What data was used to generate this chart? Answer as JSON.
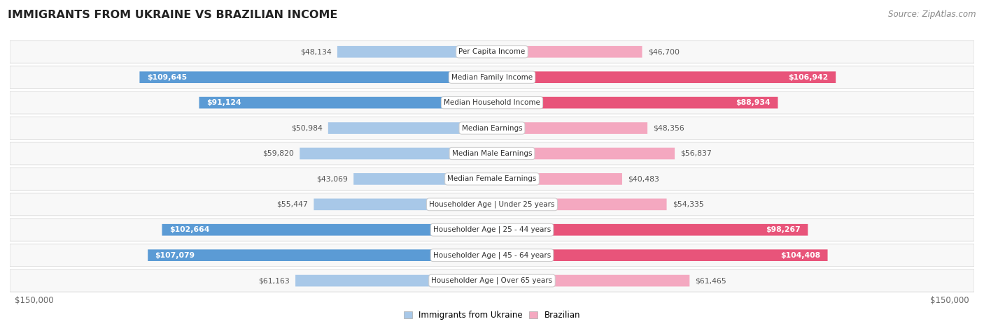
{
  "title": "IMMIGRANTS FROM UKRAINE VS BRAZILIAN INCOME",
  "source": "Source: ZipAtlas.com",
  "categories": [
    "Per Capita Income",
    "Median Family Income",
    "Median Household Income",
    "Median Earnings",
    "Median Male Earnings",
    "Median Female Earnings",
    "Householder Age | Under 25 years",
    "Householder Age | 25 - 44 years",
    "Householder Age | 45 - 64 years",
    "Householder Age | Over 65 years"
  ],
  "ukraine_values": [
    48134,
    109645,
    91124,
    50984,
    59820,
    43069,
    55447,
    102664,
    107079,
    61163
  ],
  "brazil_values": [
    46700,
    106942,
    88934,
    48356,
    56837,
    40483,
    54335,
    98267,
    104408,
    61465
  ],
  "ukraine_color_light": "#a8c8e8",
  "ukraine_color_dark": "#5b9bd5",
  "brazil_color_light": "#f4a8c0",
  "brazil_color_dark": "#e8547a",
  "inside_label_threshold": 65000,
  "max_value": 150000,
  "background_color": "#ffffff",
  "row_bg_even": "#f7f7f7",
  "row_bg_odd": "#f0f0f0",
  "row_border": "#d8d8d8",
  "outside_label_color": "#555555",
  "inside_label_color": "#ffffff",
  "center_box_color": "#ffffff",
  "center_box_border": "#cccccc",
  "title_color": "#222222",
  "source_color": "#888888",
  "axis_label_color": "#666666",
  "legend_ukraine": "Immigrants from Ukraine",
  "legend_brazil": "Brazilian"
}
